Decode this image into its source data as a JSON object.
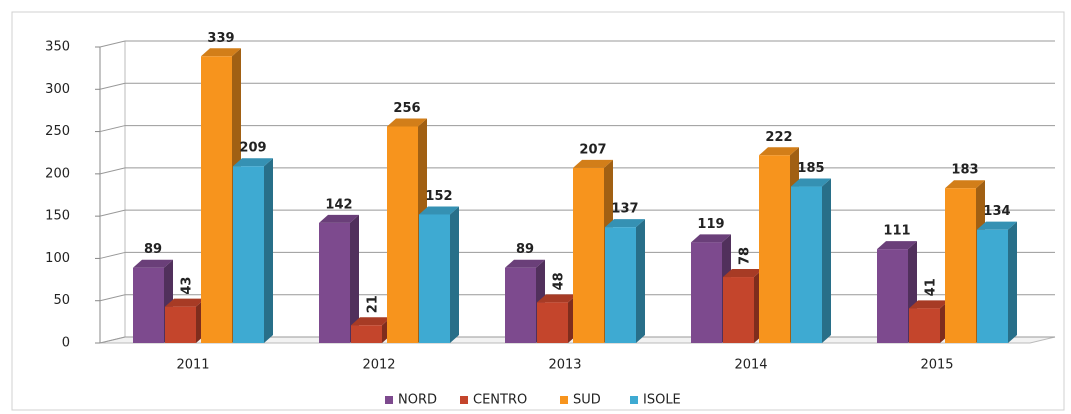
{
  "chart_data": {
    "type": "bar3d",
    "categories": [
      "2011",
      "2012",
      "2013",
      "2014",
      "2015"
    ],
    "series": [
      {
        "name": "NORD",
        "color": "#7d4a8e",
        "values": [
          89,
          142,
          89,
          119,
          111
        ]
      },
      {
        "name": "CENTRO",
        "color": "#c4452c",
        "values": [
          43,
          21,
          48,
          78,
          41
        ]
      },
      {
        "name": "SUD",
        "color": "#f7941d",
        "values": [
          339,
          256,
          207,
          222,
          183
        ]
      },
      {
        "name": "ISOLE",
        "color": "#3eaad2",
        "values": [
          209,
          152,
          137,
          185,
          134
        ]
      }
    ],
    "ylim": [
      0,
      350
    ],
    "yticks": [
      0,
      50,
      100,
      150,
      200,
      250,
      300,
      350
    ],
    "grid": true,
    "legend": "bottom"
  }
}
